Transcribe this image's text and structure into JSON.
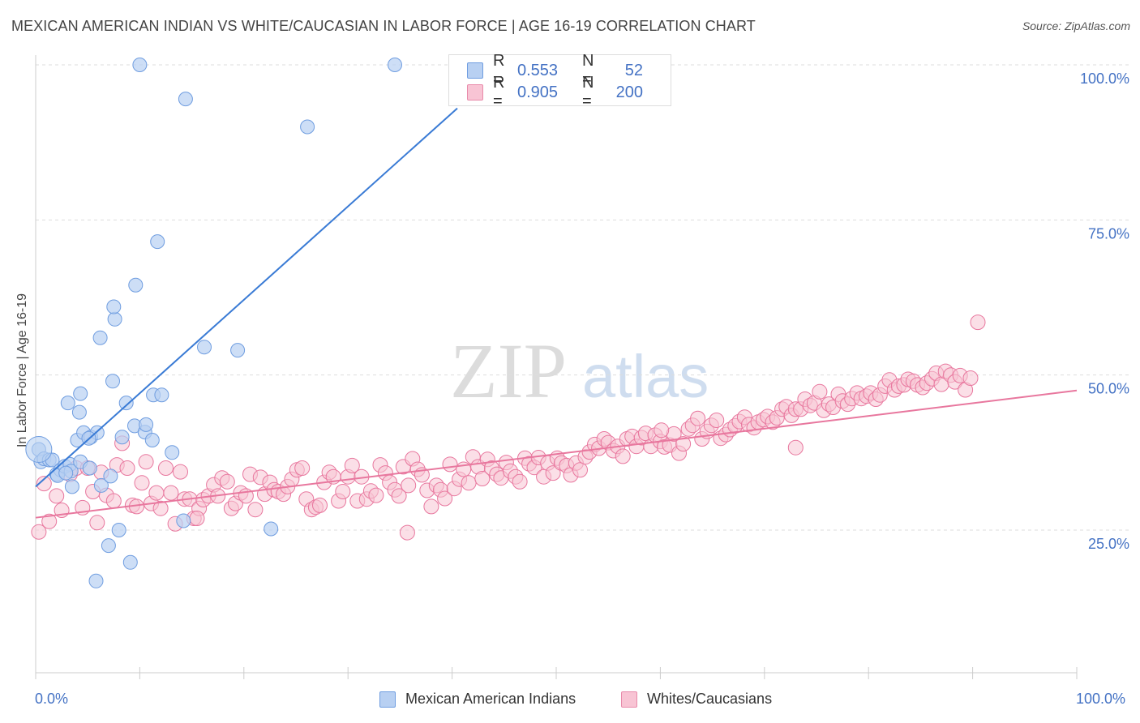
{
  "title": "MEXICAN AMERICAN INDIAN VS WHITE/CAUCASIAN IN LABOR FORCE | AGE 16-19 CORRELATION CHART",
  "source": "Source: ZipAtlas.com",
  "watermark": {
    "zip": "ZIP",
    "atlas": "atlas"
  },
  "legend": {
    "r_label": "R =",
    "n_label": "N =",
    "rows": [
      {
        "r": "0.553",
        "n": "52",
        "fill": "#b8d0f2",
        "stroke": "#6f9de0"
      },
      {
        "r": "0.905",
        "n": "200",
        "fill": "#f8c4d4",
        "stroke": "#e88aaa"
      }
    ]
  },
  "chart_data": {
    "type": "scatter",
    "title": "MEXICAN AMERICAN INDIAN VS WHITE/CAUCASIAN IN LABOR FORCE | AGE 16-19 CORRELATION CHART",
    "xlabel": "",
    "ylabel": "In Labor Force | Age 16-19",
    "xlim": [
      0,
      100
    ],
    "ylim": [
      0,
      105
    ],
    "x_tick_labels": [
      "0.0%",
      "100.0%"
    ],
    "y_ticks": [
      25,
      50,
      75,
      100
    ],
    "y_tick_labels": [
      "25.0%",
      "50.0%",
      "75.0%",
      "100.0%"
    ],
    "grid": true,
    "legend_position": "top-center",
    "series": [
      {
        "name": "Mexican American Indians",
        "color": "#6f9de0",
        "fill": "#b8d0f2",
        "trend": {
          "x": [
            0,
            40.5
          ],
          "y": [
            32,
            93
          ]
        },
        "points": [
          [
            0.3,
            38
          ],
          [
            0.5,
            36
          ],
          [
            0.8,
            36.5
          ],
          [
            1.3,
            36.3
          ],
          [
            1.6,
            36.3
          ],
          [
            2.0,
            34
          ],
          [
            2.4,
            34.7
          ],
          [
            2.1,
            33.8
          ],
          [
            2.8,
            35.3
          ],
          [
            3.3,
            35.6
          ],
          [
            3.4,
            34.5
          ],
          [
            2.9,
            34.2
          ],
          [
            3.5,
            32
          ],
          [
            4.0,
            39.5
          ],
          [
            4.3,
            36
          ],
          [
            4.6,
            40.7
          ],
          [
            3.1,
            45.5
          ],
          [
            4.2,
            44
          ],
          [
            4.3,
            47
          ],
          [
            5.3,
            40
          ],
          [
            5.9,
            40.7
          ],
          [
            5.1,
            39.8
          ],
          [
            6.3,
            32.2
          ],
          [
            7.2,
            33.7
          ],
          [
            7.4,
            49
          ],
          [
            6.2,
            56
          ],
          [
            7.6,
            59
          ],
          [
            7.5,
            61
          ],
          [
            8.3,
            40
          ],
          [
            8.7,
            45.5
          ],
          [
            9.5,
            41.8
          ],
          [
            9.6,
            64.5
          ],
          [
            10.5,
            40.8
          ],
          [
            10.6,
            42
          ],
          [
            11.3,
            46.8
          ],
          [
            11.2,
            39.5
          ],
          [
            12.1,
            46.8
          ],
          [
            13.1,
            37.5
          ],
          [
            14.2,
            26.5
          ],
          [
            11.7,
            71.5
          ],
          [
            10.0,
            100
          ],
          [
            14.4,
            94.5
          ],
          [
            16.2,
            54.5
          ],
          [
            19.4,
            54
          ],
          [
            22.6,
            25.2
          ],
          [
            26.1,
            90
          ],
          [
            34.5,
            100
          ],
          [
            5.2,
            35
          ],
          [
            5.8,
            16.8
          ],
          [
            7.0,
            22.5
          ],
          [
            8.0,
            25
          ],
          [
            9.1,
            19.8
          ]
        ]
      },
      {
        "name": "Whites/Caucasians",
        "color": "#e8779e",
        "fill": "#f8c4d4",
        "trend": {
          "x": [
            0,
            100
          ],
          "y": [
            27,
            47.5
          ]
        },
        "points": [
          [
            0.3,
            24.7
          ],
          [
            0.8,
            32.5
          ],
          [
            1.3,
            26.4
          ],
          [
            2.0,
            30.5
          ],
          [
            2.5,
            28.2
          ],
          [
            3.3,
            34
          ],
          [
            3.9,
            35
          ],
          [
            4.5,
            28.6
          ],
          [
            5.0,
            35
          ],
          [
            5.5,
            31.2
          ],
          [
            5.9,
            26.2
          ],
          [
            6.3,
            34.3
          ],
          [
            6.8,
            30.6
          ],
          [
            7.5,
            29.7
          ],
          [
            7.8,
            35.5
          ],
          [
            8.3,
            39
          ],
          [
            8.8,
            35
          ],
          [
            9.3,
            29
          ],
          [
            9.7,
            28.8
          ],
          [
            10.2,
            32.6
          ],
          [
            10.6,
            36
          ],
          [
            11.1,
            29.3
          ],
          [
            11.6,
            31
          ],
          [
            12.0,
            28.5
          ],
          [
            12.5,
            35
          ],
          [
            13.0,
            31
          ],
          [
            13.4,
            26
          ],
          [
            13.9,
            34.4
          ],
          [
            14.3,
            30
          ],
          [
            14.8,
            30
          ],
          [
            15.2,
            26.9
          ],
          [
            15.7,
            28.5
          ],
          [
            16.1,
            29.9
          ],
          [
            16.6,
            30.5
          ],
          [
            17.1,
            32.3
          ],
          [
            17.5,
            30.5
          ],
          [
            17.9,
            33.4
          ],
          [
            18.4,
            32.8
          ],
          [
            18.8,
            28.5
          ],
          [
            19.2,
            29.3
          ],
          [
            19.7,
            31
          ],
          [
            20.2,
            30.5
          ],
          [
            20.6,
            34
          ],
          [
            21.1,
            28.3
          ],
          [
            21.6,
            33.5
          ],
          [
            22.0,
            30.8
          ],
          [
            22.5,
            32.7
          ],
          [
            22.9,
            31.5
          ],
          [
            23.3,
            31.2
          ],
          [
            23.8,
            30.8
          ],
          [
            24.2,
            32
          ],
          [
            24.6,
            33.2
          ],
          [
            25.1,
            34.7
          ],
          [
            25.6,
            35
          ],
          [
            26.0,
            30
          ],
          [
            26.5,
            28.3
          ],
          [
            26.9,
            28.7
          ],
          [
            27.3,
            29
          ],
          [
            27.7,
            32.7
          ],
          [
            28.2,
            34.3
          ],
          [
            28.6,
            33.6
          ],
          [
            29.1,
            29.7
          ],
          [
            29.5,
            31.2
          ],
          [
            30.0,
            33.6
          ],
          [
            30.4,
            35.4
          ],
          [
            30.9,
            29.7
          ],
          [
            31.3,
            33.6
          ],
          [
            31.8,
            30
          ],
          [
            32.2,
            31.3
          ],
          [
            32.7,
            30.6
          ],
          [
            33.1,
            35.5
          ],
          [
            33.6,
            34.2
          ],
          [
            34.0,
            32.7
          ],
          [
            34.5,
            31.5
          ],
          [
            34.9,
            30.5
          ],
          [
            35.3,
            35.2
          ],
          [
            35.8,
            32.2
          ],
          [
            36.2,
            36.5
          ],
          [
            36.7,
            34.8
          ],
          [
            37.1,
            33.9
          ],
          [
            37.6,
            31.4
          ],
          [
            38.0,
            28.8
          ],
          [
            38.5,
            32.2
          ],
          [
            38.9,
            31.5
          ],
          [
            39.3,
            30.1
          ],
          [
            39.8,
            35.6
          ],
          [
            40.2,
            31.7
          ],
          [
            40.7,
            33.2
          ],
          [
            41.1,
            34.8
          ],
          [
            41.6,
            32.6
          ],
          [
            42.0,
            36.8
          ],
          [
            42.5,
            35.2
          ],
          [
            42.9,
            33.3
          ],
          [
            43.4,
            36.4
          ],
          [
            43.8,
            35
          ],
          [
            44.3,
            34
          ],
          [
            44.7,
            33.4
          ],
          [
            45.2,
            35.9
          ],
          [
            45.6,
            34.5
          ],
          [
            46.1,
            33.6
          ],
          [
            46.5,
            32.8
          ],
          [
            47.0,
            36.6
          ],
          [
            47.4,
            35.7
          ],
          [
            47.9,
            35.1
          ],
          [
            48.3,
            36.7
          ],
          [
            48.8,
            33.6
          ],
          [
            49.2,
            35.8
          ],
          [
            49.7,
            34.2
          ],
          [
            50.1,
            36.6
          ],
          [
            50.5,
            35.8
          ],
          [
            51.0,
            35.4
          ],
          [
            51.4,
            33.9
          ],
          [
            51.9,
            35.8
          ],
          [
            52.3,
            34.7
          ],
          [
            52.8,
            36.8
          ],
          [
            53.2,
            37.6
          ],
          [
            53.7,
            38.8
          ],
          [
            54.1,
            38.2
          ],
          [
            54.6,
            39.7
          ],
          [
            55.0,
            39.1
          ],
          [
            55.5,
            37.8
          ],
          [
            55.9,
            38.5
          ],
          [
            56.4,
            36.9
          ],
          [
            56.8,
            39.7
          ],
          [
            57.3,
            40.1
          ],
          [
            57.7,
            38.5
          ],
          [
            58.2,
            39.9
          ],
          [
            58.6,
            40.6
          ],
          [
            59.1,
            38.5
          ],
          [
            59.5,
            40.3
          ],
          [
            60.0,
            39.3
          ],
          [
            60.4,
            38.4
          ],
          [
            60.9,
            38.7
          ],
          [
            61.3,
            40.5
          ],
          [
            61.8,
            37.4
          ],
          [
            62.2,
            38.9
          ],
          [
            62.7,
            41.3
          ],
          [
            63.1,
            41.9
          ],
          [
            63.6,
            43
          ],
          [
            64.0,
            39.7
          ],
          [
            64.5,
            40.9
          ],
          [
            64.9,
            41.9
          ],
          [
            65.4,
            42.7
          ],
          [
            65.8,
            39.8
          ],
          [
            66.3,
            40.4
          ],
          [
            66.7,
            41.2
          ],
          [
            67.2,
            41.8
          ],
          [
            67.6,
            42.5
          ],
          [
            68.1,
            43.2
          ],
          [
            68.5,
            42
          ],
          [
            69.0,
            41.5
          ],
          [
            69.4,
            42.4
          ],
          [
            69.9,
            42.8
          ],
          [
            70.3,
            43.3
          ],
          [
            70.8,
            42.4
          ],
          [
            71.2,
            43.1
          ],
          [
            71.7,
            44.5
          ],
          [
            72.1,
            44.9
          ],
          [
            72.6,
            43.5
          ],
          [
            73.0,
            44.5
          ],
          [
            73.5,
            44.5
          ],
          [
            73.9,
            46.1
          ],
          [
            74.4,
            45.1
          ],
          [
            74.8,
            45.5
          ],
          [
            75.3,
            47.3
          ],
          [
            75.7,
            44.3
          ],
          [
            76.2,
            45.3
          ],
          [
            76.6,
            44.8
          ],
          [
            77.1,
            46.9
          ],
          [
            77.5,
            45.8
          ],
          [
            78.0,
            45.3
          ],
          [
            78.4,
            46.2
          ],
          [
            78.9,
            47.1
          ],
          [
            79.3,
            46.2
          ],
          [
            79.8,
            46.6
          ],
          [
            80.2,
            47.1
          ],
          [
            80.7,
            46.1
          ],
          [
            81.1,
            46.8
          ],
          [
            81.6,
            48.2
          ],
          [
            82.0,
            49.2
          ],
          [
            82.5,
            47.6
          ],
          [
            82.9,
            48.2
          ],
          [
            83.4,
            48.4
          ],
          [
            83.8,
            49.3
          ],
          [
            84.3,
            49
          ],
          [
            84.7,
            48.4
          ],
          [
            85.2,
            48
          ],
          [
            85.6,
            48.7
          ],
          [
            86.1,
            49.4
          ],
          [
            86.5,
            50.3
          ],
          [
            87.0,
            48.5
          ],
          [
            87.4,
            50.6
          ],
          [
            87.9,
            50
          ],
          [
            88.3,
            48.9
          ],
          [
            88.8,
            49.9
          ],
          [
            89.3,
            47.6
          ],
          [
            89.8,
            49.5
          ],
          [
            90.5,
            58.5
          ],
          [
            73.0,
            38.3
          ],
          [
            60.1,
            41.1
          ],
          [
            35.7,
            24.6
          ],
          [
            15.5,
            26.9
          ]
        ]
      }
    ]
  }
}
